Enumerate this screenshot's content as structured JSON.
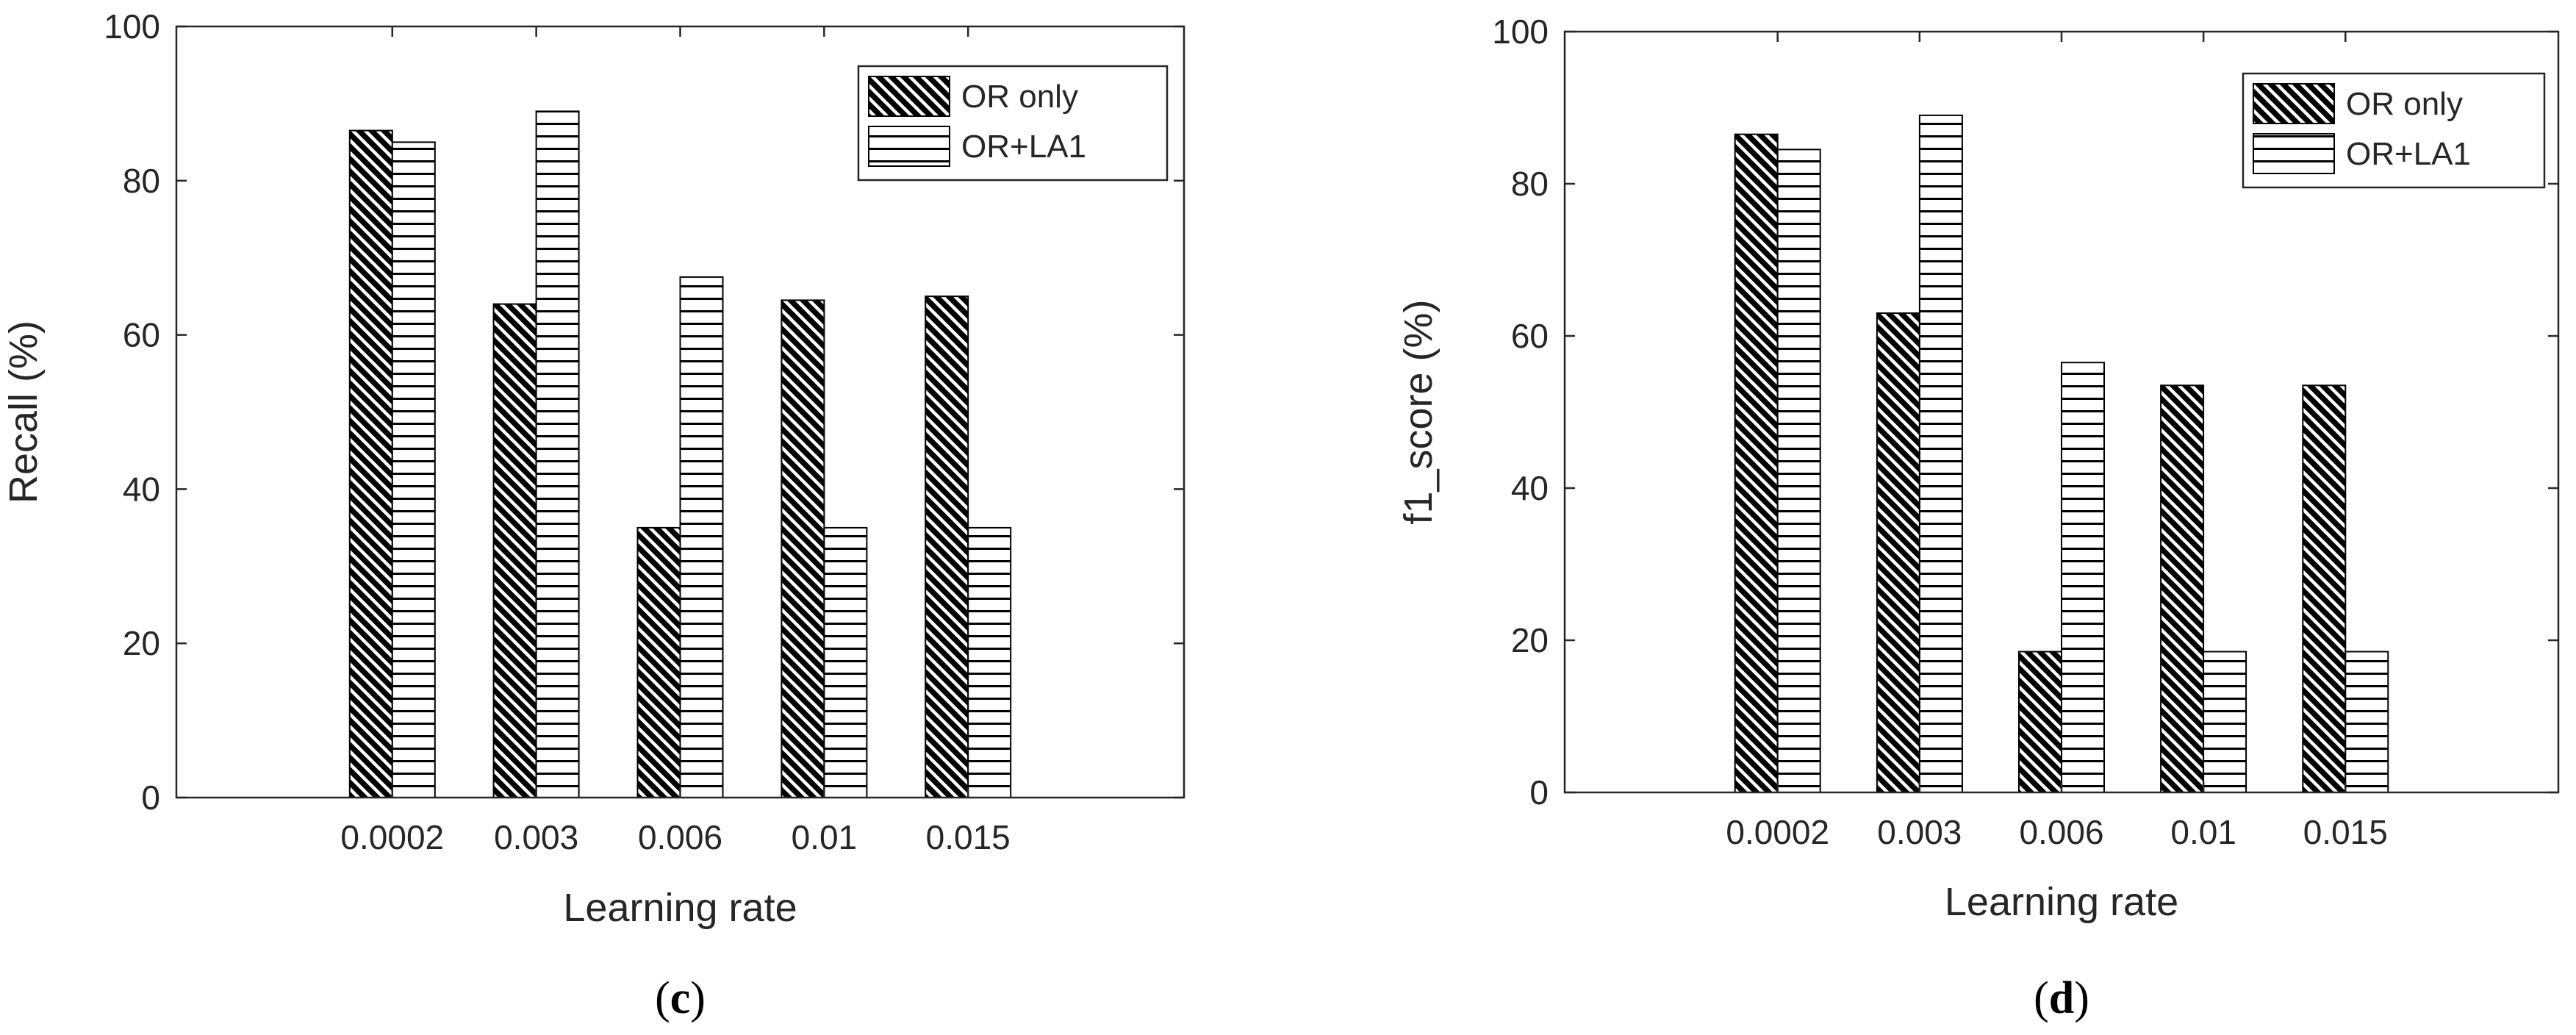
{
  "chart_data": [
    {
      "type": "bar",
      "panel": "(c)",
      "panel_letter": "c",
      "xlabel": "Learning rate",
      "ylabel": "Recall (%)",
      "ylim": [
        0,
        100
      ],
      "yticks": [
        0,
        20,
        40,
        60,
        80,
        100
      ],
      "categories": [
        "0.0002",
        "0.003",
        "0.006",
        "0.01",
        "0.015"
      ],
      "series": [
        {
          "name": "OR only",
          "pattern": "diagonal-hatch",
          "values": [
            86.5,
            64,
            35,
            64.5,
            65
          ]
        },
        {
          "name": "OR+LA1",
          "pattern": "horizontal-hatch",
          "values": [
            85,
            89,
            67.5,
            35,
            35
          ]
        }
      ],
      "legend": "top-right",
      "grid": false
    },
    {
      "type": "bar",
      "panel": "(d)",
      "panel_letter": "d",
      "xlabel": "Learning rate",
      "ylabel": "f1_score (%)",
      "ylim": [
        0,
        100
      ],
      "yticks": [
        0,
        20,
        40,
        60,
        80,
        100
      ],
      "categories": [
        "0.0002",
        "0.003",
        "0.006",
        "0.01",
        "0.015"
      ],
      "series": [
        {
          "name": "OR only",
          "pattern": "diagonal-hatch",
          "values": [
            86.5,
            63,
            18.5,
            53.5,
            53.5
          ]
        },
        {
          "name": "OR+LA1",
          "pattern": "horizontal-hatch",
          "values": [
            84.5,
            89,
            56.5,
            18.5,
            18.5
          ]
        }
      ],
      "legend": "top-right",
      "grid": false
    }
  ]
}
